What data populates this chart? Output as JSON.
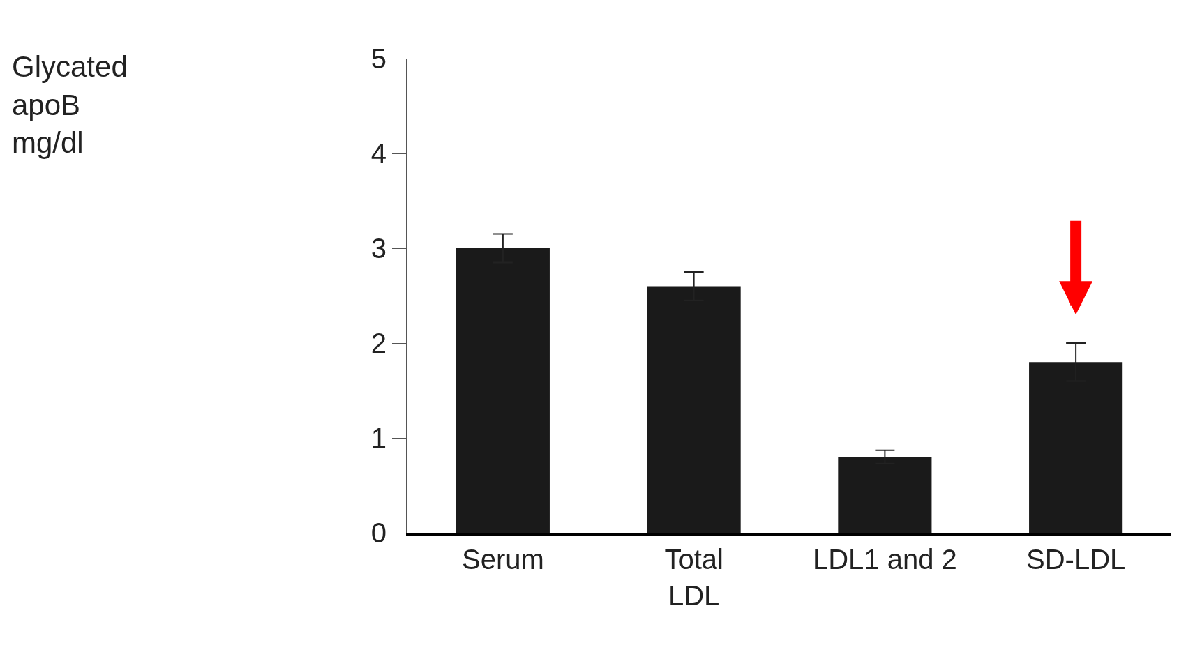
{
  "chart_data": {
    "type": "bar",
    "annotations": [
      "Glycated\napoB\nmg/dl"
    ],
    "categories": [
      "Serum",
      "Total\nLDL",
      "LDL1 and 2",
      "SD-LDL"
    ],
    "values": [
      3.0,
      2.6,
      0.8,
      1.8
    ],
    "errors": [
      0.15,
      0.15,
      0.07,
      0.2
    ],
    "color": "#1a1a1a",
    "ylim": [
      0,
      5
    ],
    "yticks": [
      0,
      1,
      2,
      3,
      4,
      5
    ]
  }
}
